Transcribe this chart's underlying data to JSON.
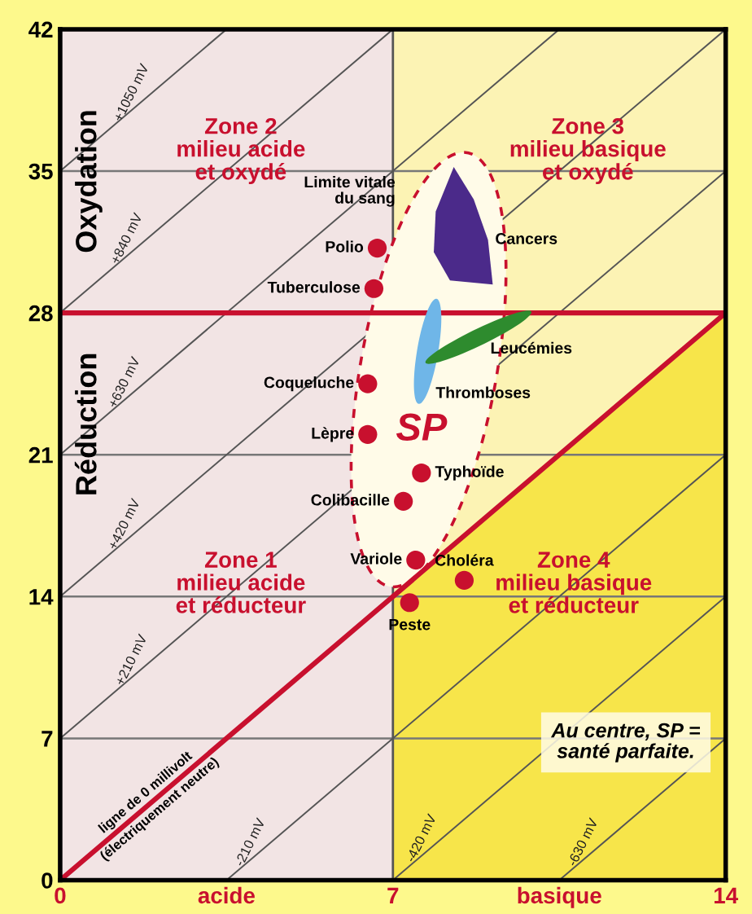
{
  "chart_data": {
    "type": "scatter",
    "xlim": [
      0,
      14
    ],
    "ylim": [
      0,
      42
    ],
    "xticks": [
      0,
      {
        "value": 3.5,
        "label": "acide"
      },
      7,
      {
        "value": 10.5,
        "label": "basique"
      },
      14
    ],
    "yticks": [
      0,
      7,
      14,
      21,
      28,
      35,
      42
    ],
    "grid": "y",
    "legend": false,
    "bands": [
      {
        "axis": "x",
        "from": 0,
        "to": 7,
        "color": "#f2e4e4"
      },
      {
        "axis": "x",
        "from": 7,
        "to": 14,
        "color": "#fcf3b4"
      }
    ],
    "ref_lines": [
      {
        "axis": "x",
        "value": 7,
        "color": "#555555"
      },
      {
        "axis": "y",
        "value": 28,
        "color": "#c8102e"
      }
    ],
    "series": [
      {
        "type": "area",
        "color": "#f7e54a",
        "x": [
          7,
          14
        ],
        "values": [
          14,
          28
        ]
      },
      {
        "type": "line",
        "color": "#555555",
        "x": [
          10.5,
          14
        ],
        "values": [
          0,
          7
        ]
      },
      {
        "type": "line",
        "color": "#555555",
        "x": [
          7,
          14
        ],
        "values": [
          0,
          14
        ]
      },
      {
        "type": "line",
        "color": "#555555",
        "x": [
          3.5,
          14
        ],
        "values": [
          0,
          21
        ]
      },
      {
        "type": "line",
        "color": "#c8102e",
        "x": [
          0,
          14
        ],
        "values": [
          0,
          28
        ]
      },
      {
        "type": "line",
        "color": "#555555",
        "x": [
          0,
          14
        ],
        "values": [
          7,
          35
        ]
      },
      {
        "type": "line",
        "color": "#555555",
        "x": [
          0,
          14
        ],
        "values": [
          14,
          42
        ]
      },
      {
        "type": "line",
        "color": "#555555",
        "x": [
          0,
          10.5
        ],
        "values": [
          21,
          42
        ]
      },
      {
        "type": "line",
        "color": "#555555",
        "x": [
          0,
          7
        ],
        "values": [
          28,
          42
        ]
      },
      {
        "type": "line",
        "color": "#555555",
        "x": [
          0,
          3.5
        ],
        "values": [
          35,
          42
        ]
      },
      {
        "marker": "circle",
        "color": "#c8102e",
        "x": [
          6.67,
          6.6,
          6.47,
          6.47,
          7.22,
          7.6,
          7.48,
          8.5,
          7.35
        ],
        "values": [
          31.2,
          29.2,
          24.5,
          22.0,
          18.7,
          20.1,
          15.8,
          14.8,
          13.7
        ]
      }
    ],
    "annotations": [
      "Zone 2\nmilieu acide\net oxydé",
      "Zone 3\nmilieu basique\net oxydé",
      "Zone 1\nmilieu acide\net réducteur",
      "Zone 4\nmilieu basique\net réducteur",
      "Limite vitale\ndu sang",
      "SP",
      "Cancers",
      "Leucémies",
      "Thromboses",
      "Oxydation",
      "Réduction",
      "Au centre, SP =\nsanté parfaite.",
      "ligne de 0 millivolt\n(électriquement neutre)",
      {
        "text": "+1050 mV",
        "x": 1.7,
        "y": 38.4
      },
      {
        "text": "+840 mV",
        "x": 1.6,
        "y": 31.2
      },
      {
        "text": "+630 mV",
        "x": 1.55,
        "y": 24.1
      },
      {
        "text": "+420 mV",
        "x": 1.55,
        "y": 17.1
      },
      {
        "text": "+210 mV",
        "x": 1.7,
        "y": 10.4
      },
      {
        "text": "-210 mV",
        "x": 4.2,
        "y": 1.4
      },
      {
        "text": "-420 mV",
        "x": 7.8,
        "y": 1.6
      },
      {
        "text": "-630 mV",
        "x": 11.2,
        "y": 1.4
      },
      {
        "text": "Polio",
        "x": 6.67,
        "y": 31.2
      },
      {
        "text": "Tuberculose",
        "x": 6.6,
        "y": 29.2
      },
      {
        "text": "Coqueluche",
        "x": 6.47,
        "y": 24.5
      },
      {
        "text": "Lèpre",
        "x": 6.47,
        "y": 22.0
      },
      {
        "text": "Colibacille",
        "x": 7.22,
        "y": 18.7
      },
      {
        "text": "Typhoïde",
        "x": 7.6,
        "y": 20.1
      },
      {
        "text": "Variole",
        "x": 7.48,
        "y": 15.8
      },
      {
        "text": "Choléra",
        "x": 8.5,
        "y": 14.8
      },
      {
        "text": "Peste",
        "x": 7.35,
        "y": 13.7
      }
    ]
  }
}
